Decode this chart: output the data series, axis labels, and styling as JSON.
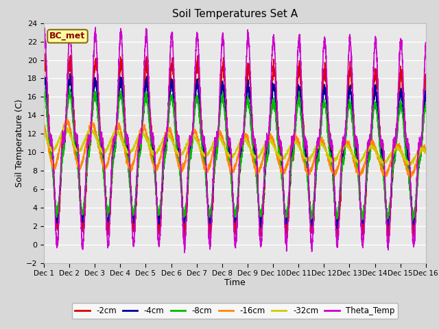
{
  "title": "Soil Temperatures Set A",
  "xlabel": "Time",
  "ylabel": "Soil Temperature (C)",
  "ylim": [
    -2,
    24
  ],
  "xlim": [
    0,
    15
  ],
  "xtick_labels": [
    "Dec 1",
    "Dec 2",
    "Dec 3",
    "Dec 4",
    "Dec 5",
    "Dec 6",
    "Dec 7",
    "Dec 8",
    "Dec 9",
    "Dec 10",
    "Dec 11",
    "Dec 12",
    "Dec 13",
    "Dec 14",
    "Dec 15",
    "Dec 16"
  ],
  "xtick_positions": [
    0,
    1,
    2,
    3,
    4,
    5,
    6,
    7,
    8,
    9,
    10,
    11,
    12,
    13,
    14,
    15
  ],
  "series": {
    "-2cm": {
      "color": "#dd0000",
      "lw": 1.2
    },
    "-4cm": {
      "color": "#000099",
      "lw": 1.2
    },
    "-8cm": {
      "color": "#00bb00",
      "lw": 1.2
    },
    "-16cm": {
      "color": "#ff8800",
      "lw": 1.2
    },
    "-32cm": {
      "color": "#cccc00",
      "lw": 1.2
    },
    "Theta_Temp": {
      "color": "#cc00cc",
      "lw": 1.2
    }
  },
  "legend_order": [
    "-2cm",
    "-4cm",
    "-8cm",
    "-16cm",
    "-32cm",
    "Theta_Temp"
  ],
  "annotation": "BC_met",
  "plot_bg": "#e8e8e8",
  "fig_bg": "#d8d8d8",
  "grid_color": "#ffffff",
  "title_fontsize": 11,
  "axis_label_fontsize": 9
}
